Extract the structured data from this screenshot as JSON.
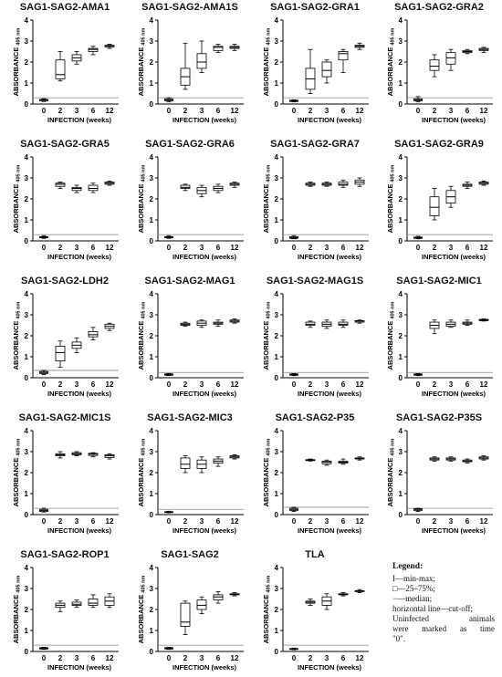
{
  "axis": {
    "y_label": "ABSORBANCE",
    "y_label_sub": "405 nm",
    "x_label": "INFECTION (weeks)",
    "x_ticks": [
      "0",
      "2",
      "3",
      "6",
      "12"
    ],
    "y_ticks": [
      "0",
      "1",
      "2",
      "3",
      "4"
    ]
  },
  "legend": {
    "title": "Legend:",
    "lines": [
      "I—min-max;",
      "□—25–75%;",
      "−—median;",
      "horizontal line—cut-off;",
      "Uninfected animals",
      "were marked as time",
      "\"0\"."
    ]
  },
  "chart_data": [
    {
      "type": "box",
      "title": "SAG1-SAG2-AMA1",
      "cutoff": 0.3,
      "ylim": [
        0,
        4
      ],
      "categories": [
        "0",
        "2",
        "3",
        "6",
        "12"
      ],
      "boxes": [
        [
          0.12,
          0.15,
          0.2,
          0.22,
          0.25
        ],
        [
          1.1,
          1.2,
          1.4,
          2.1,
          2.5
        ],
        [
          1.9,
          2.05,
          2.2,
          2.35,
          2.5
        ],
        [
          2.35,
          2.5,
          2.6,
          2.65,
          2.75
        ],
        [
          2.65,
          2.72,
          2.75,
          2.8,
          2.85
        ]
      ]
    },
    {
      "type": "box",
      "title": "SAG1-SAG2-AMA1S",
      "cutoff": 0.3,
      "ylim": [
        0,
        4
      ],
      "categories": [
        "0",
        "2",
        "3",
        "6",
        "12"
      ],
      "boxes": [
        [
          0.1,
          0.15,
          0.2,
          0.25,
          0.3
        ],
        [
          0.7,
          0.9,
          1.3,
          1.7,
          2.9
        ],
        [
          1.5,
          1.7,
          2.0,
          2.4,
          3.0
        ],
        [
          2.45,
          2.55,
          2.7,
          2.75,
          2.85
        ],
        [
          2.55,
          2.65,
          2.7,
          2.75,
          2.85
        ]
      ]
    },
    {
      "type": "box",
      "title": "SAG1-SAG2-GRA1",
      "cutoff": 0.3,
      "ylim": [
        0,
        4
      ],
      "categories": [
        "0",
        "2",
        "3",
        "6",
        "12"
      ],
      "boxes": [
        [
          0.1,
          0.12,
          0.15,
          0.18,
          0.2
        ],
        [
          0.5,
          0.7,
          1.2,
          1.7,
          2.6
        ],
        [
          1.0,
          1.3,
          1.6,
          2.0,
          2.1
        ],
        [
          1.5,
          2.1,
          2.4,
          2.5,
          2.6
        ],
        [
          2.6,
          2.7,
          2.75,
          2.8,
          2.9
        ]
      ]
    },
    {
      "type": "box",
      "title": "SAG1-SAG2-GRA2",
      "cutoff": 0.3,
      "ylim": [
        0,
        4
      ],
      "categories": [
        "0",
        "2",
        "3",
        "6",
        "12"
      ],
      "boxes": [
        [
          0.1,
          0.15,
          0.2,
          0.25,
          0.35
        ],
        [
          1.3,
          1.6,
          1.8,
          2.1,
          2.35
        ],
        [
          1.6,
          1.9,
          2.2,
          2.45,
          2.6
        ],
        [
          2.4,
          2.45,
          2.5,
          2.55,
          2.6
        ],
        [
          2.45,
          2.55,
          2.6,
          2.65,
          2.7
        ]
      ]
    },
    {
      "type": "box",
      "title": "SAG1-SAG2-GRA5",
      "cutoff": 0.3,
      "ylim": [
        0,
        4
      ],
      "categories": [
        "0",
        "2",
        "3",
        "6",
        "12"
      ],
      "boxes": [
        [
          0.12,
          0.15,
          0.18,
          0.2,
          0.25
        ],
        [
          2.5,
          2.6,
          2.7,
          2.75,
          2.8
        ],
        [
          2.3,
          2.4,
          2.5,
          2.55,
          2.65
        ],
        [
          2.3,
          2.4,
          2.5,
          2.65,
          2.75
        ],
        [
          2.65,
          2.7,
          2.75,
          2.8,
          2.85
        ]
      ]
    },
    {
      "type": "box",
      "title": "SAG1-SAG2-GRA6",
      "cutoff": 0.3,
      "ylim": [
        0,
        4
      ],
      "categories": [
        "0",
        "2",
        "3",
        "6",
        "12"
      ],
      "boxes": [
        [
          0.12,
          0.15,
          0.18,
          0.2,
          0.25
        ],
        [
          2.4,
          2.5,
          2.55,
          2.65,
          2.7
        ],
        [
          2.1,
          2.25,
          2.4,
          2.55,
          2.65
        ],
        [
          2.3,
          2.4,
          2.5,
          2.6,
          2.7
        ],
        [
          2.55,
          2.65,
          2.7,
          2.75,
          2.8
        ]
      ]
    },
    {
      "type": "box",
      "title": "SAG1-SAG2-GRA7",
      "cutoff": 0.3,
      "ylim": [
        0,
        4
      ],
      "categories": [
        "0",
        "2",
        "3",
        "6",
        "12"
      ],
      "boxes": [
        [
          0.1,
          0.12,
          0.15,
          0.2,
          0.25
        ],
        [
          2.6,
          2.65,
          2.7,
          2.75,
          2.8
        ],
        [
          2.6,
          2.65,
          2.7,
          2.75,
          2.8
        ],
        [
          2.55,
          2.65,
          2.7,
          2.8,
          2.9
        ],
        [
          2.6,
          2.7,
          2.8,
          2.9,
          3.0
        ]
      ]
    },
    {
      "type": "box",
      "title": "SAG1-SAG2-GRA9",
      "cutoff": 0.3,
      "ylim": [
        0,
        4
      ],
      "categories": [
        "0",
        "2",
        "3",
        "6",
        "12"
      ],
      "boxes": [
        [
          0.1,
          0.12,
          0.15,
          0.18,
          0.22
        ],
        [
          1.0,
          1.2,
          1.6,
          2.1,
          2.5
        ],
        [
          1.6,
          1.8,
          2.1,
          2.4,
          2.6
        ],
        [
          2.5,
          2.6,
          2.65,
          2.7,
          2.8
        ],
        [
          2.65,
          2.7,
          2.75,
          2.8,
          2.85
        ]
      ]
    },
    {
      "type": "box",
      "title": "SAG1-SAG2-LDH2",
      "cutoff": 0.35,
      "ylim": [
        0,
        4
      ],
      "categories": [
        "0",
        "2",
        "3",
        "6",
        "12"
      ],
      "boxes": [
        [
          0.15,
          0.2,
          0.25,
          0.3,
          0.35
        ],
        [
          0.5,
          0.8,
          1.2,
          1.5,
          1.75
        ],
        [
          1.2,
          1.4,
          1.55,
          1.7,
          1.9
        ],
        [
          1.8,
          1.95,
          2.05,
          2.2,
          2.4
        ],
        [
          2.25,
          2.35,
          2.45,
          2.55,
          2.6
        ]
      ]
    },
    {
      "type": "box",
      "title": "SAG1-SAG2-MAG1",
      "cutoff": 0.25,
      "ylim": [
        0,
        4
      ],
      "categories": [
        "0",
        "2",
        "3",
        "6",
        "12"
      ],
      "boxes": [
        [
          0.1,
          0.12,
          0.15,
          0.18,
          0.2
        ],
        [
          2.45,
          2.5,
          2.55,
          2.6,
          2.65
        ],
        [
          2.4,
          2.5,
          2.6,
          2.7,
          2.75
        ],
        [
          2.45,
          2.55,
          2.6,
          2.65,
          2.75
        ],
        [
          2.6,
          2.65,
          2.7,
          2.75,
          2.8
        ]
      ]
    },
    {
      "type": "box",
      "title": "SAG1-SAG2-MAG1S",
      "cutoff": 0.25,
      "ylim": [
        0,
        4
      ],
      "categories": [
        "0",
        "2",
        "3",
        "6",
        "12"
      ],
      "boxes": [
        [
          0.1,
          0.12,
          0.15,
          0.18,
          0.2
        ],
        [
          2.4,
          2.5,
          2.55,
          2.65,
          2.7
        ],
        [
          2.35,
          2.45,
          2.55,
          2.65,
          2.75
        ],
        [
          2.4,
          2.5,
          2.55,
          2.65,
          2.75
        ],
        [
          2.6,
          2.65,
          2.7,
          2.72,
          2.75
        ]
      ]
    },
    {
      "type": "box",
      "title": "SAG1-SAG2-MIC1",
      "cutoff": 0.25,
      "ylim": [
        0,
        4
      ],
      "categories": [
        "0",
        "2",
        "3",
        "6",
        "12"
      ],
      "boxes": [
        [
          0.1,
          0.12,
          0.15,
          0.18,
          0.2
        ],
        [
          2.1,
          2.35,
          2.5,
          2.65,
          2.75
        ],
        [
          2.4,
          2.45,
          2.55,
          2.65,
          2.75
        ],
        [
          2.5,
          2.55,
          2.6,
          2.65,
          2.75
        ],
        [
          2.7,
          2.72,
          2.75,
          2.78,
          2.8
        ]
      ]
    },
    {
      "type": "box",
      "title": "SAG1-SAG2-MIC1S",
      "cutoff": 0.3,
      "ylim": [
        0,
        4
      ],
      "categories": [
        "0",
        "2",
        "3",
        "6",
        "12"
      ],
      "boxes": [
        [
          0.12,
          0.15,
          0.2,
          0.25,
          0.3
        ],
        [
          2.7,
          2.8,
          2.85,
          2.9,
          3.0
        ],
        [
          2.8,
          2.85,
          2.9,
          2.95,
          3.0
        ],
        [
          2.75,
          2.82,
          2.88,
          2.92,
          2.95
        ],
        [
          2.65,
          2.72,
          2.8,
          2.85,
          2.9
        ]
      ]
    },
    {
      "type": "box",
      "title": "SAG1-SAG2-MIC3",
      "cutoff": 0.25,
      "ylim": [
        0,
        4
      ],
      "categories": [
        "0",
        "2",
        "3",
        "6",
        "12"
      ],
      "boxes": [
        [
          0.08,
          0.1,
          0.12,
          0.14,
          0.16
        ],
        [
          2.0,
          2.2,
          2.4,
          2.7,
          2.8
        ],
        [
          2.0,
          2.2,
          2.4,
          2.6,
          2.75
        ],
        [
          2.3,
          2.45,
          2.55,
          2.65,
          2.75
        ],
        [
          2.65,
          2.7,
          2.75,
          2.8,
          2.85
        ]
      ]
    },
    {
      "type": "box",
      "title": "SAG1-SAG2-P35",
      "cutoff": 0.35,
      "ylim": [
        0,
        4
      ],
      "categories": [
        "0",
        "2",
        "3",
        "6",
        "12"
      ],
      "boxes": [
        [
          0.15,
          0.2,
          0.25,
          0.3,
          0.35
        ],
        [
          2.55,
          2.58,
          2.6,
          2.62,
          2.65
        ],
        [
          2.35,
          2.42,
          2.5,
          2.55,
          2.6
        ],
        [
          2.4,
          2.45,
          2.5,
          2.55,
          2.65
        ],
        [
          2.6,
          2.65,
          2.68,
          2.7,
          2.75
        ]
      ]
    },
    {
      "type": "box",
      "title": "SAG1-SAG2-P35S",
      "cutoff": 0.3,
      "ylim": [
        0,
        4
      ],
      "categories": [
        "0",
        "2",
        "3",
        "6",
        "12"
      ],
      "boxes": [
        [
          0.15,
          0.2,
          0.25,
          0.28,
          0.3
        ],
        [
          2.55,
          2.6,
          2.65,
          2.7,
          2.75
        ],
        [
          2.55,
          2.6,
          2.65,
          2.7,
          2.75
        ],
        [
          2.45,
          2.52,
          2.55,
          2.6,
          2.65
        ],
        [
          2.6,
          2.65,
          2.7,
          2.75,
          2.8
        ]
      ]
    },
    {
      "type": "box",
      "title": "SAG1-SAG2-ROP1",
      "cutoff": 0.3,
      "ylim": [
        0,
        4
      ],
      "categories": [
        "0",
        "2",
        "3",
        "6",
        "12"
      ],
      "boxes": [
        [
          0.1,
          0.12,
          0.15,
          0.18,
          0.2
        ],
        [
          1.9,
          2.1,
          2.2,
          2.3,
          2.4
        ],
        [
          2.1,
          2.2,
          2.25,
          2.35,
          2.45
        ],
        [
          2.1,
          2.2,
          2.3,
          2.5,
          2.7
        ],
        [
          2.1,
          2.2,
          2.4,
          2.6,
          2.75
        ]
      ]
    },
    {
      "type": "box",
      "title": "SAG1-SAG2",
      "cutoff": 0.3,
      "ylim": [
        0,
        4
      ],
      "categories": [
        "0",
        "2",
        "3",
        "6",
        "12"
      ],
      "boxes": [
        [
          0.1,
          0.12,
          0.15,
          0.18,
          0.2
        ],
        [
          0.8,
          1.2,
          1.4,
          2.3,
          2.4
        ],
        [
          1.8,
          2.0,
          2.2,
          2.45,
          2.6
        ],
        [
          2.3,
          2.45,
          2.6,
          2.7,
          2.85
        ],
        [
          2.65,
          2.7,
          2.72,
          2.75,
          2.8
        ]
      ]
    },
    {
      "type": "box",
      "title": "TLA",
      "cutoff": 0.3,
      "ylim": [
        0,
        4
      ],
      "categories": [
        "0",
        "2",
        "3",
        "6",
        "12"
      ],
      "boxes": [
        [
          0.08,
          0.1,
          0.12,
          0.14,
          0.16
        ],
        [
          2.2,
          2.3,
          2.35,
          2.4,
          2.5
        ],
        [
          2.0,
          2.2,
          2.4,
          2.6,
          2.75
        ],
        [
          2.65,
          2.7,
          2.72,
          2.75,
          2.8
        ],
        [
          2.8,
          2.85,
          2.88,
          2.9,
          2.95
        ]
      ]
    }
  ]
}
